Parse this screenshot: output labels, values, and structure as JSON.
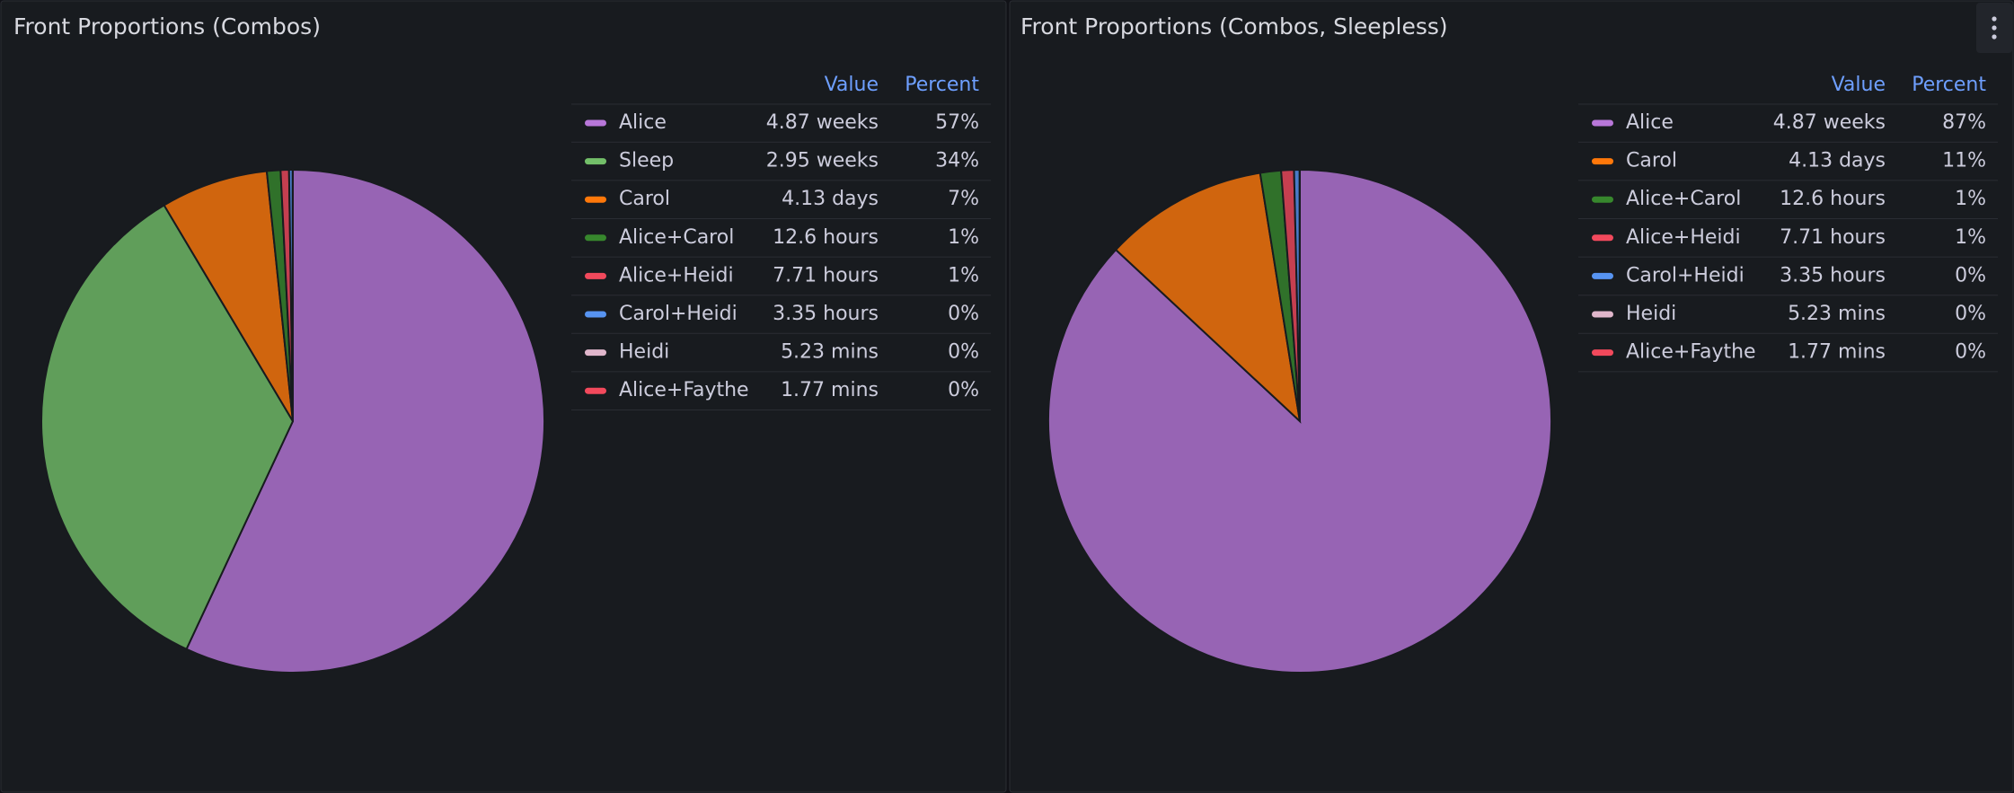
{
  "chart_data": [
    {
      "type": "pie",
      "title": "Front Proportions (Combos)",
      "legend_headers": [
        "Value",
        "Percent"
      ],
      "categories": [
        "Alice",
        "Sleep",
        "Carol",
        "Alice+Carol",
        "Alice+Heidi",
        "Carol+Heidi",
        "Heidi",
        "Alice+Faythe"
      ],
      "values": [
        818.16,
        495.6,
        99.12,
        12.6,
        7.71,
        3.35,
        0.0872,
        0.0295
      ],
      "value_labels": [
        "4.87 weeks",
        "2.95 weeks",
        "4.13 days",
        "12.6 hours",
        "7.71 hours",
        "3.35 hours",
        "5.23 mins",
        "1.77 mins"
      ],
      "percent_labels": [
        "57%",
        "34%",
        "7%",
        "1%",
        "1%",
        "0%",
        "0%",
        "0%"
      ],
      "colors": [
        "#b877d9",
        "#73bf69",
        "#ff780a",
        "#37872d",
        "#f2495c",
        "#5794f2",
        "#e0b6cb",
        "#f2495c"
      ]
    },
    {
      "type": "pie",
      "title": "Front Proportions (Combos, Sleepless)",
      "legend_headers": [
        "Value",
        "Percent"
      ],
      "categories": [
        "Alice",
        "Carol",
        "Alice+Carol",
        "Alice+Heidi",
        "Carol+Heidi",
        "Heidi",
        "Alice+Faythe"
      ],
      "values": [
        818.16,
        99.12,
        12.6,
        7.71,
        3.35,
        0.0872,
        0.0295
      ],
      "value_labels": [
        "4.87 weeks",
        "4.13 days",
        "12.6 hours",
        "7.71 hours",
        "3.35 hours",
        "5.23 mins",
        "1.77 mins"
      ],
      "percent_labels": [
        "87%",
        "11%",
        "1%",
        "1%",
        "0%",
        "0%",
        "0%"
      ],
      "colors": [
        "#b877d9",
        "#ff780a",
        "#37872d",
        "#f2495c",
        "#5794f2",
        "#e0b6cb",
        "#f2495c"
      ]
    }
  ]
}
